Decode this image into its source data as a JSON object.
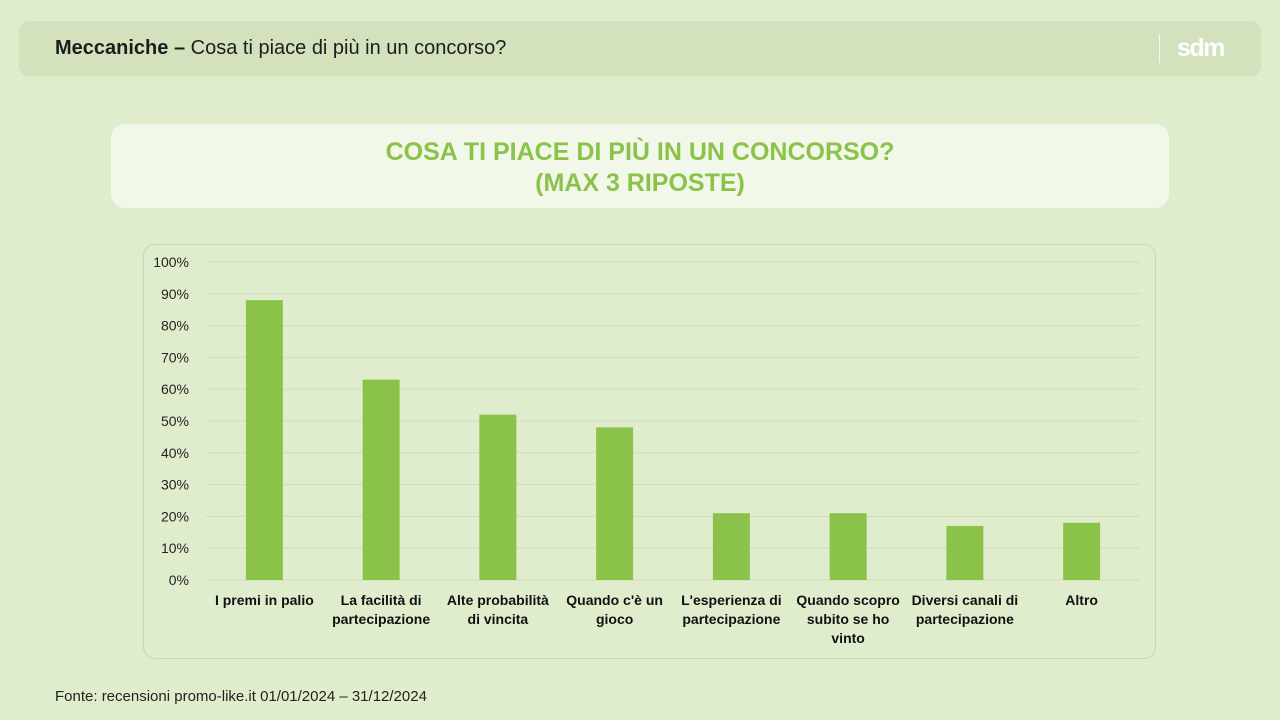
{
  "header": {
    "title_bold": "Meccaniche –",
    "title_rest": "Cosa ti piace di più in un concorso?",
    "logo_text": "sdm"
  },
  "chart_title": {
    "line1": "COSA TI PIACE DI PIÙ IN UN CONCORSO?",
    "line2": "(MAX 3 RIPOSTE)"
  },
  "footer": {
    "source": "Fonte: recensioni promo-like.it 01/01/2024 – 31/12/2024"
  },
  "colors": {
    "bar": "#8bc34a",
    "background": "#e0edcd",
    "header_bg": "#d3e2bd",
    "title_text": "#8bc34a"
  },
  "chart_data": {
    "type": "bar",
    "title": "COSA TI PIACE DI PIÙ IN UN CONCORSO? (MAX 3 RIPOSTE)",
    "categories": [
      "I premi in palio",
      "La facilità di partecipazione",
      "Alte probabilità di vincita",
      "Quando c'è un gioco",
      "L'esperienza di partecipazione",
      "Quando scopro subito se ho vinto",
      "Diversi canali di partecipazione",
      "Altro"
    ],
    "values": [
      88,
      63,
      52,
      48,
      21,
      21,
      17,
      18
    ],
    "ylim": [
      0,
      100
    ],
    "yticks": [
      "0%",
      "10%",
      "20%",
      "30%",
      "40%",
      "50%",
      "60%",
      "70%",
      "80%",
      "90%",
      "100%"
    ],
    "grid": true,
    "legend": "none"
  }
}
